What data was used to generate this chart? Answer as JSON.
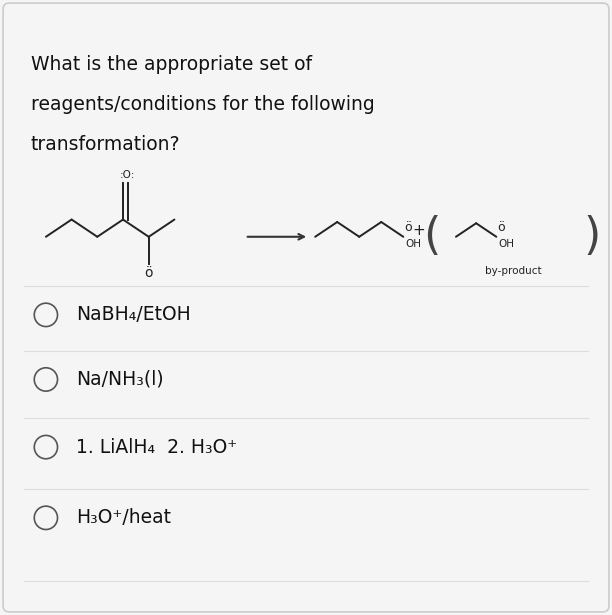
{
  "title_lines": [
    "What is the appropriate set of",
    "reagents/conditions for the following",
    "transformation?"
  ],
  "options": [
    "NaBH₄/EtOH",
    "Na/NH₃(l)",
    "1. LiAlH₄  2. H₃O⁺",
    "H₃O⁺/heat"
  ],
  "background_color": "#f5f5f5",
  "border_color": "#cccccc",
  "text_color": "#111111",
  "divider_color": "#dddddd",
  "circle_color": "#555555",
  "arrow_color": "#333333",
  "title_fontsize": 13.5,
  "option_fontsize": 13.5,
  "molecule_color": "#222222",
  "byproduct_text": "by-product",
  "fig_width": 6.12,
  "fig_height": 6.15
}
